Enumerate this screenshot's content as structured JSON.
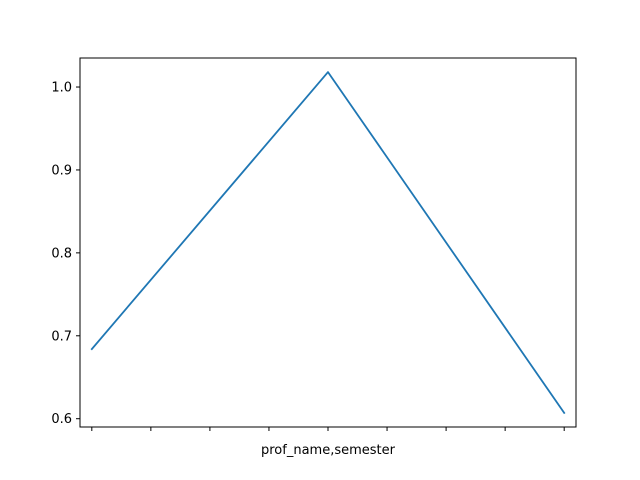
{
  "chart_data": {
    "type": "line",
    "xlabel": "prof_name,semester",
    "ylabel": "",
    "title": "",
    "grid": false,
    "x": [
      0,
      1,
      2
    ],
    "x_tick_count": 9,
    "series": [
      {
        "values": [
          0.684,
          1.018,
          0.607
        ],
        "color": "#1f77b4"
      }
    ],
    "xlim": [
      -0.05,
      2.05
    ],
    "ylim": [
      0.59,
      1.035
    ],
    "yticks": [
      0.6,
      0.7,
      0.8,
      0.9,
      1.0
    ],
    "ytick_labels": [
      "0.6",
      "0.7",
      "0.8",
      "0.9",
      "1.0"
    ]
  }
}
